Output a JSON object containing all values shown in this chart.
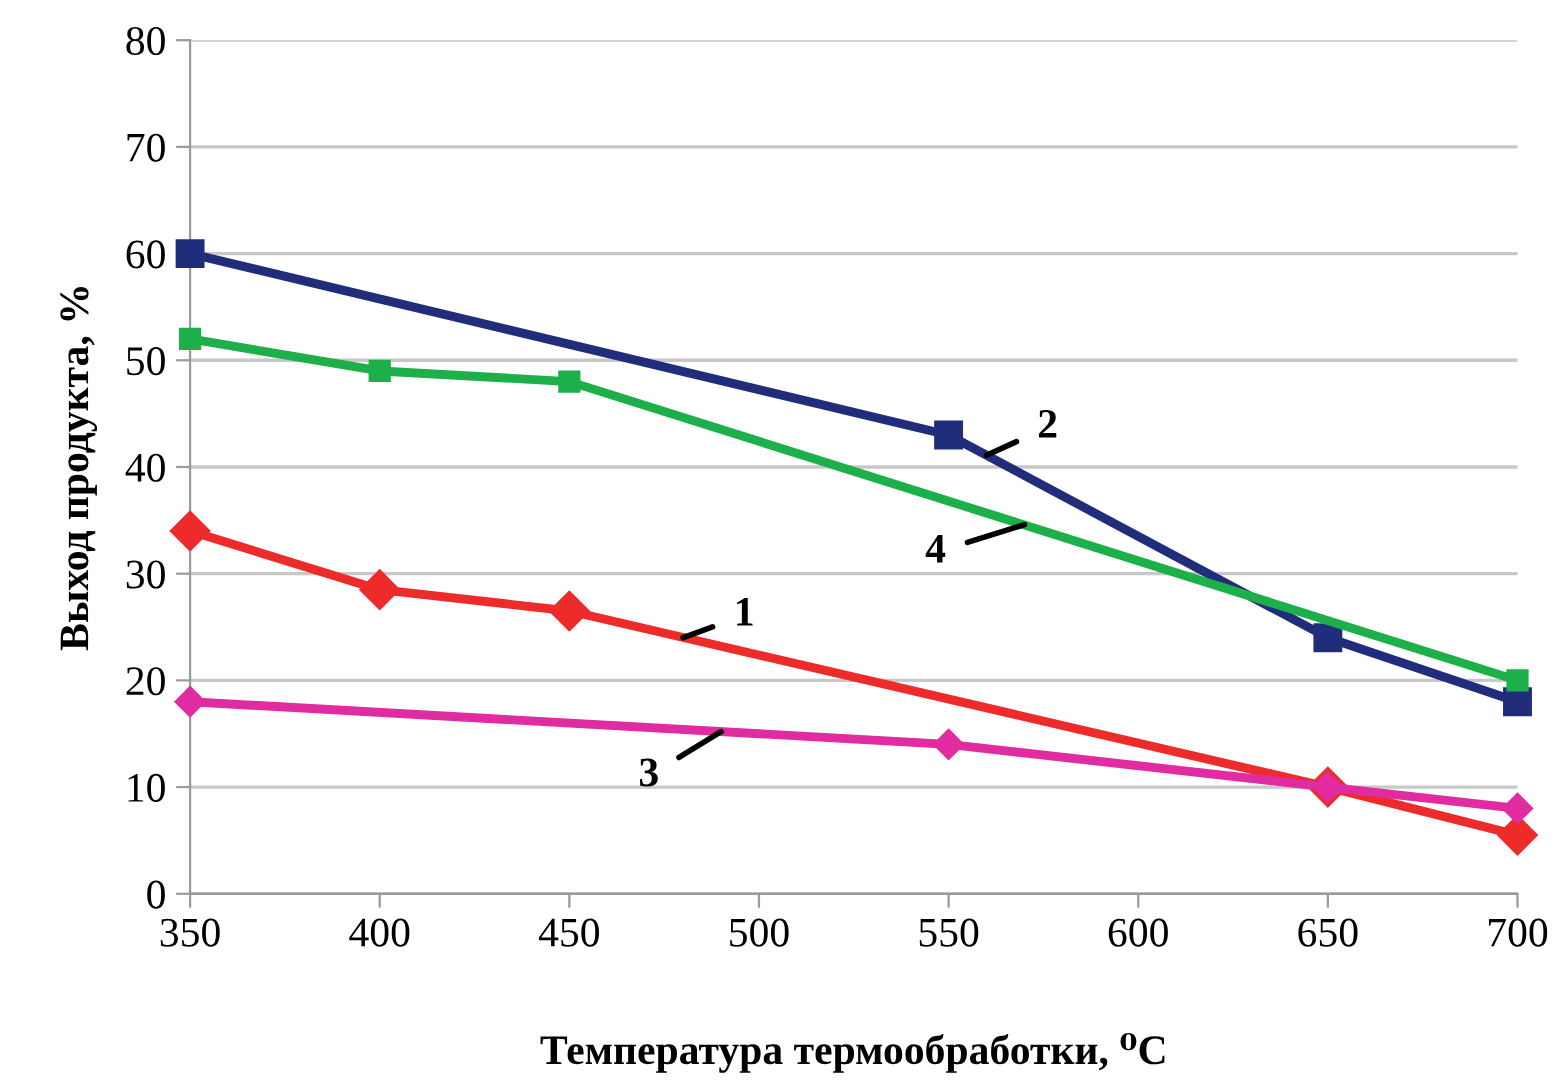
{
  "chart_data": {
    "type": "line",
    "xlabel": "Температура термообработки, ⁰C",
    "ylabel": "Выход продукта, %",
    "xlim": [
      350,
      700
    ],
    "xticks": [
      350,
      400,
      450,
      500,
      550,
      600,
      650,
      700
    ],
    "ylim": [
      0,
      80
    ],
    "yticks": [
      0,
      10,
      20,
      30,
      40,
      50,
      60,
      70,
      80
    ],
    "grid": "y",
    "line_style": "solid",
    "series": [
      {
        "color": "#ee2b2b",
        "marker": "diamond",
        "x": [
          350,
          400,
          450,
          650,
          700
        ],
        "values": [
          34,
          28.5,
          26.5,
          10,
          5.5
        ]
      },
      {
        "color": "#1f2d7a",
        "marker": "square",
        "x": [
          350,
          550,
          650,
          700
        ],
        "values": [
          60,
          43,
          24,
          18
        ]
      },
      {
        "color": "#e02ca0",
        "marker": "diamond",
        "x": [
          350,
          550,
          650,
          700
        ],
        "values": [
          18,
          14,
          10,
          8
        ]
      },
      {
        "color": "#1db04a",
        "marker": "square",
        "x": [
          350,
          400,
          450,
          700
        ],
        "values": [
          52,
          49,
          48,
          20
        ]
      }
    ],
    "annotations": [
      {
        "text": "1",
        "x": 480,
        "y": 24
      },
      {
        "text": "2",
        "x": 560,
        "y": 41.1
      },
      {
        "text": "3",
        "x": 490,
        "y": 15.2
      },
      {
        "text": "4",
        "x": 570,
        "y": 34.6
      }
    ]
  }
}
